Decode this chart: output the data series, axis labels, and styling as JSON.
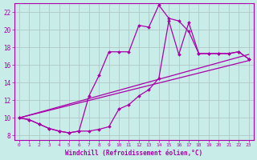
{
  "xlabel": "Windchill (Refroidissement éolien,°C)",
  "xlim": [
    -0.5,
    23.5
  ],
  "ylim": [
    7.5,
    23
  ],
  "yticks": [
    8,
    10,
    12,
    14,
    16,
    18,
    20,
    22
  ],
  "xticks": [
    0,
    1,
    2,
    3,
    4,
    5,
    6,
    7,
    8,
    9,
    10,
    11,
    12,
    13,
    14,
    15,
    16,
    17,
    18,
    19,
    20,
    21,
    22,
    23
  ],
  "background_color": "#c8ece8",
  "grid_color": "#b0c8c8",
  "line_color": "#aa00aa",
  "line1_x": [
    0,
    1,
    2,
    3,
    4,
    5,
    6,
    7,
    8,
    9,
    10,
    11,
    12,
    13,
    14,
    15,
    16,
    17,
    18,
    19,
    20,
    21,
    22,
    23
  ],
  "line1_y": [
    10.0,
    9.8,
    9.3,
    8.8,
    8.5,
    8.3,
    8.5,
    8.5,
    8.7,
    9.0,
    11.0,
    11.5,
    12.5,
    13.2,
    14.5,
    21.0,
    17.2,
    20.8,
    17.3,
    17.3,
    17.3,
    17.3,
    17.5,
    16.7
  ],
  "line2_x": [
    0,
    1,
    2,
    3,
    4,
    5,
    6,
    7,
    8,
    9,
    10,
    11,
    12,
    13,
    14,
    15,
    16,
    17,
    18,
    19,
    20,
    21,
    22,
    23
  ],
  "line2_y": [
    10.0,
    9.8,
    9.3,
    8.8,
    8.5,
    8.3,
    8.5,
    12.5,
    14.8,
    17.5,
    17.5,
    17.5,
    20.5,
    20.3,
    22.8,
    21.3,
    21.0,
    19.8,
    17.3,
    17.3,
    17.3,
    17.3,
    17.5,
    16.7
  ],
  "line3_x": [
    0,
    23
  ],
  "line3_y": [
    10.0,
    16.5
  ],
  "line4_x": [
    0,
    23
  ],
  "line4_y": [
    10.0,
    17.2
  ]
}
